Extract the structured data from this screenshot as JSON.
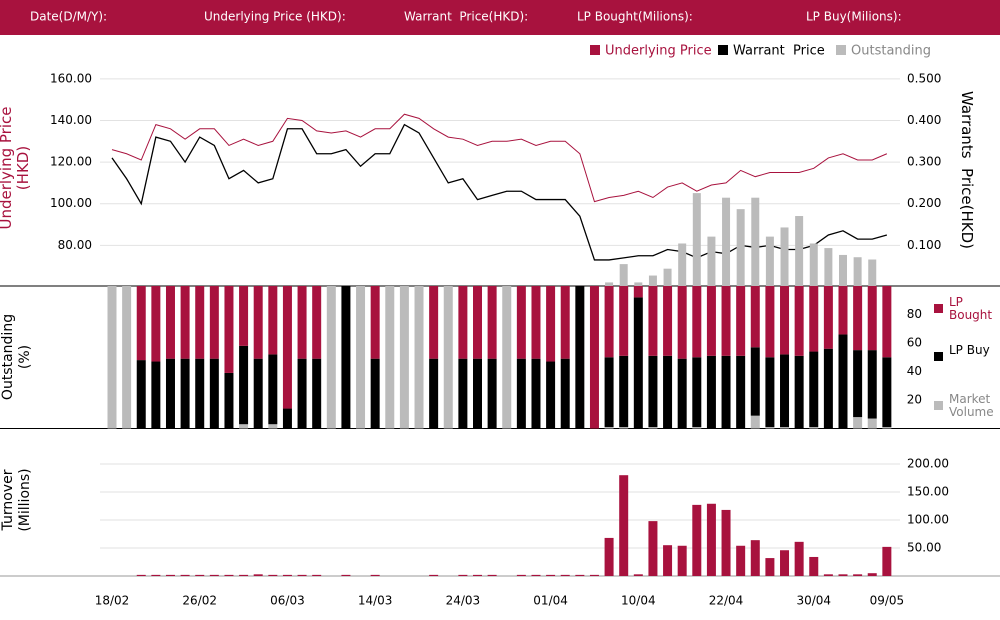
{
  "header": {
    "fields": [
      "Date(D/M/Y):",
      "Underlying Price (HKD):",
      "Warrant  Price(HKD):",
      "LP Bought(Milions):",
      "LP Buy(Milions):"
    ]
  },
  "chart_data": [
    {
      "type": "line",
      "ylabel": "Underlying Price (HKD)",
      "y2label": "Warrants  Price(HKD)",
      "categories": [
        "18/02",
        null,
        null,
        null,
        null,
        null,
        "26/02",
        null,
        null,
        null,
        null,
        null,
        "06/03",
        null,
        null,
        null,
        null,
        null,
        "14/03",
        null,
        null,
        null,
        null,
        null,
        "24/03",
        null,
        null,
        null,
        null,
        null,
        "01/04",
        null,
        null,
        null,
        null,
        null,
        "10/04",
        null,
        null,
        null,
        null,
        null,
        "22/04",
        null,
        null,
        null,
        null,
        null,
        "30/04",
        null,
        null,
        null,
        null,
        "09/05"
      ],
      "ylim": [
        60,
        170
      ],
      "yticks": [
        {
          "value": 80,
          "label": "80.00"
        },
        {
          "value": 100,
          "label": "100.00"
        },
        {
          "value": 120,
          "label": "120.00"
        },
        {
          "value": 140,
          "label": "140.00"
        },
        {
          "value": 160,
          "label": "160.00"
        }
      ],
      "y2lim": [
        0,
        0.55
      ],
      "y2ticks": [
        {
          "value": 0.1,
          "label": "0.100"
        },
        {
          "value": 0.2,
          "label": "0.200"
        },
        {
          "value": 0.3,
          "label": "0.300"
        },
        {
          "value": 0.4,
          "label": "0.400"
        },
        {
          "value": 0.5,
          "label": "0.500"
        }
      ],
      "y3lim": [
        0,
        100
      ],
      "grid": true,
      "series": [
        {
          "name": "Underlying Price",
          "color": "#a8123e",
          "values": [
            126,
            124,
            121,
            138,
            136,
            131,
            136,
            136,
            128,
            131,
            128,
            130,
            141,
            140,
            135,
            134,
            135,
            132,
            136,
            136,
            143,
            141,
            136,
            132,
            131,
            128,
            130,
            130,
            131,
            128,
            130,
            130,
            124,
            101,
            103,
            104,
            106,
            103,
            108,
            110,
            106,
            109,
            110,
            116,
            113,
            115,
            115,
            115,
            117,
            122,
            124,
            121,
            121,
            124
          ]
        },
        {
          "name": "Warrant  Price",
          "color": "#000000",
          "axis": "y2",
          "values": [
            0.31,
            0.26,
            0.2,
            0.36,
            0.35,
            0.3,
            0.36,
            0.34,
            0.26,
            0.28,
            0.25,
            0.26,
            0.38,
            0.38,
            0.32,
            0.32,
            0.33,
            0.29,
            0.32,
            0.32,
            0.39,
            0.37,
            0.31,
            0.25,
            0.26,
            0.21,
            0.22,
            0.23,
            0.23,
            0.21,
            0.21,
            0.21,
            0.17,
            0.065,
            0.065,
            0.07,
            0.075,
            0.075,
            0.09,
            0.085,
            0.07,
            0.085,
            0.08,
            0.1,
            0.095,
            0.1,
            0.09,
            0.09,
            0.1,
            0.125,
            0.135,
            0.115,
            0.115,
            0.125
          ]
        },
        {
          "name": "Outstanding",
          "color": "#bbbbbb",
          "type": "bar",
          "axis": "y3",
          "values": [
            null,
            null,
            null,
            null,
            null,
            null,
            null,
            null,
            null,
            null,
            null,
            null,
            null,
            null,
            null,
            null,
            null,
            null,
            null,
            null,
            null,
            null,
            null,
            null,
            null,
            null,
            null,
            null,
            null,
            null,
            null,
            null,
            null,
            null,
            2,
            10,
            2,
            5,
            8,
            19,
            41,
            22,
            39,
            34,
            39,
            22,
            26,
            31,
            19,
            17,
            14,
            13,
            12,
            null
          ]
        }
      ]
    },
    {
      "type": "stacked_bar",
      "ylabel": "Outstanding (%)",
      "ylim": [
        0,
        100
      ],
      "yticks": [
        20,
        40,
        60,
        80
      ],
      "series": [
        {
          "name": "Market Volume",
          "color": "#bbbbbb",
          "values": [
            100,
            100,
            0,
            0,
            0,
            0,
            0,
            0,
            0,
            3,
            0,
            3,
            0,
            0,
            0,
            100,
            0,
            100,
            0,
            100,
            100,
            100,
            0,
            100,
            0,
            0,
            0,
            100,
            0,
            0,
            0,
            0,
            0,
            0,
            1,
            1,
            0,
            1,
            0,
            0,
            1,
            0,
            0,
            0,
            9,
            1,
            1,
            0,
            1,
            0,
            0,
            8,
            7,
            1
          ]
        },
        {
          "name": "LP Buy",
          "color": "#000000",
          "values": [
            0,
            0,
            48,
            47,
            49,
            49,
            49,
            49,
            39,
            55,
            49,
            49,
            14,
            49,
            49,
            0,
            100,
            0,
            49,
            0,
            0,
            0,
            49,
            0,
            49,
            49,
            49,
            0,
            49,
            49,
            47,
            49,
            100,
            0,
            49,
            50,
            92,
            50,
            51,
            49,
            49,
            51,
            51,
            51,
            48,
            49,
            51,
            51,
            53,
            56,
            66,
            47,
            48,
            49
          ]
        },
        {
          "name": "LP Bought",
          "color": "#a8123e",
          "values": [
            0,
            0,
            52,
            53,
            51,
            51,
            51,
            51,
            61,
            42,
            51,
            48,
            86,
            51,
            51,
            0,
            0,
            0,
            51,
            0,
            0,
            0,
            51,
            0,
            51,
            51,
            51,
            0,
            51,
            51,
            53,
            51,
            0,
            100,
            50,
            49,
            8,
            49,
            49,
            51,
            50,
            49,
            49,
            49,
            43,
            50,
            48,
            49,
            46,
            44,
            34,
            45,
            45,
            50
          ]
        }
      ]
    },
    {
      "type": "bar",
      "ylabel": "Turnover (Millions)",
      "color": "#a8123e",
      "grid": true,
      "ylim": [
        0,
        225
      ],
      "yticks": [
        {
          "value": 50,
          "label": "50.00"
        },
        {
          "value": 100,
          "label": "100.00"
        },
        {
          "value": 150,
          "label": "150.00"
        },
        {
          "value": 200,
          "label": "200.00"
        }
      ],
      "values": [
        0,
        0,
        2,
        2,
        2,
        2,
        2,
        2,
        2,
        2,
        3,
        2,
        2,
        2,
        2,
        0,
        2,
        0,
        2,
        0,
        0,
        0,
        2,
        0,
        2,
        2,
        2,
        0,
        2,
        2,
        2,
        2,
        2,
        2,
        68,
        180,
        3,
        98,
        55,
        54,
        127,
        129,
        118,
        54,
        64,
        32,
        46,
        61,
        34,
        3,
        3,
        3,
        5,
        52
      ]
    }
  ]
}
